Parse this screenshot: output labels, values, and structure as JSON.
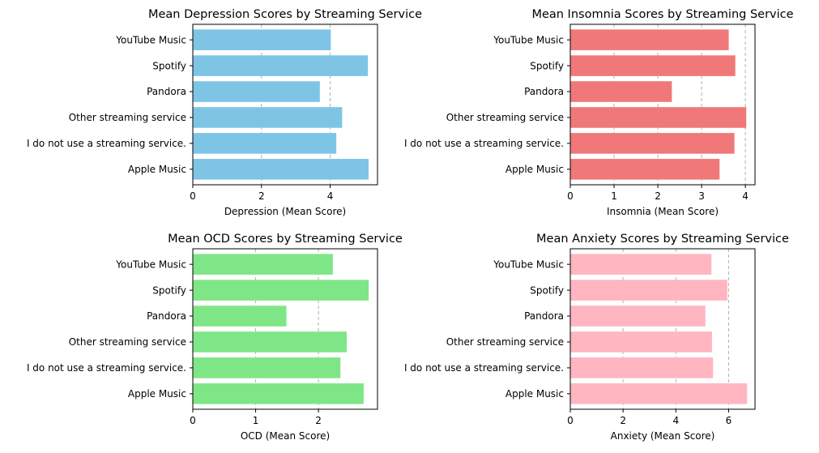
{
  "chart_data": [
    {
      "type": "bar",
      "orientation": "horizontal",
      "title": "Mean Depression Scores by Streaming Service",
      "xlabel": "Depression (Mean Score)",
      "ylabel": "",
      "categories": [
        "Apple Music",
        "I do not use a streaming service.",
        "Other streaming service",
        "Pandora",
        "Spotify",
        "YouTube Music"
      ],
      "values": [
        5.12,
        4.18,
        4.35,
        3.7,
        5.1,
        4.02
      ],
      "xlim": [
        0,
        5.38
      ],
      "xticks": [
        0,
        2,
        4
      ],
      "color": "#7ec5e5",
      "grid": "x"
    },
    {
      "type": "bar",
      "orientation": "horizontal",
      "title": "Mean Insomnia Scores by Streaming Service",
      "xlabel": "Insomnia (Mean Score)",
      "ylabel": "",
      "categories": [
        "Apple Music",
        "I do not use a streaming service.",
        "Other streaming service",
        "Pandora",
        "Spotify",
        "YouTube Music"
      ],
      "values": [
        3.41,
        3.75,
        4.02,
        2.32,
        3.77,
        3.62
      ],
      "xlim": [
        0,
        4.22
      ],
      "xticks": [
        0,
        1,
        2,
        3,
        4
      ],
      "color": "#f07878",
      "grid": "x"
    },
    {
      "type": "bar",
      "orientation": "horizontal",
      "title": "Mean OCD Scores by Streaming Service",
      "xlabel": "OCD (Mean Score)",
      "ylabel": "",
      "categories": [
        "Apple Music",
        "I do not use a streaming service.",
        "Other streaming service",
        "Pandora",
        "Spotify",
        "YouTube Music"
      ],
      "values": [
        2.72,
        2.35,
        2.45,
        1.49,
        2.8,
        2.23
      ],
      "xlim": [
        0,
        2.94
      ],
      "xticks": [
        0,
        1,
        2
      ],
      "color": "#7fe687",
      "grid": "x"
    },
    {
      "type": "bar",
      "orientation": "horizontal",
      "title": "Mean Anxiety Scores by Streaming Service",
      "xlabel": "Anxiety (Mean Score)",
      "ylabel": "",
      "categories": [
        "Apple Music",
        "I do not use a streaming service.",
        "Other streaming service",
        "Pandora",
        "Spotify",
        "YouTube Music"
      ],
      "values": [
        6.7,
        5.41,
        5.37,
        5.12,
        5.95,
        5.35
      ],
      "xlim": [
        0,
        7.0
      ],
      "xticks": [
        0,
        2,
        4,
        6
      ],
      "color": "#ffb6c1",
      "grid": "x"
    }
  ]
}
